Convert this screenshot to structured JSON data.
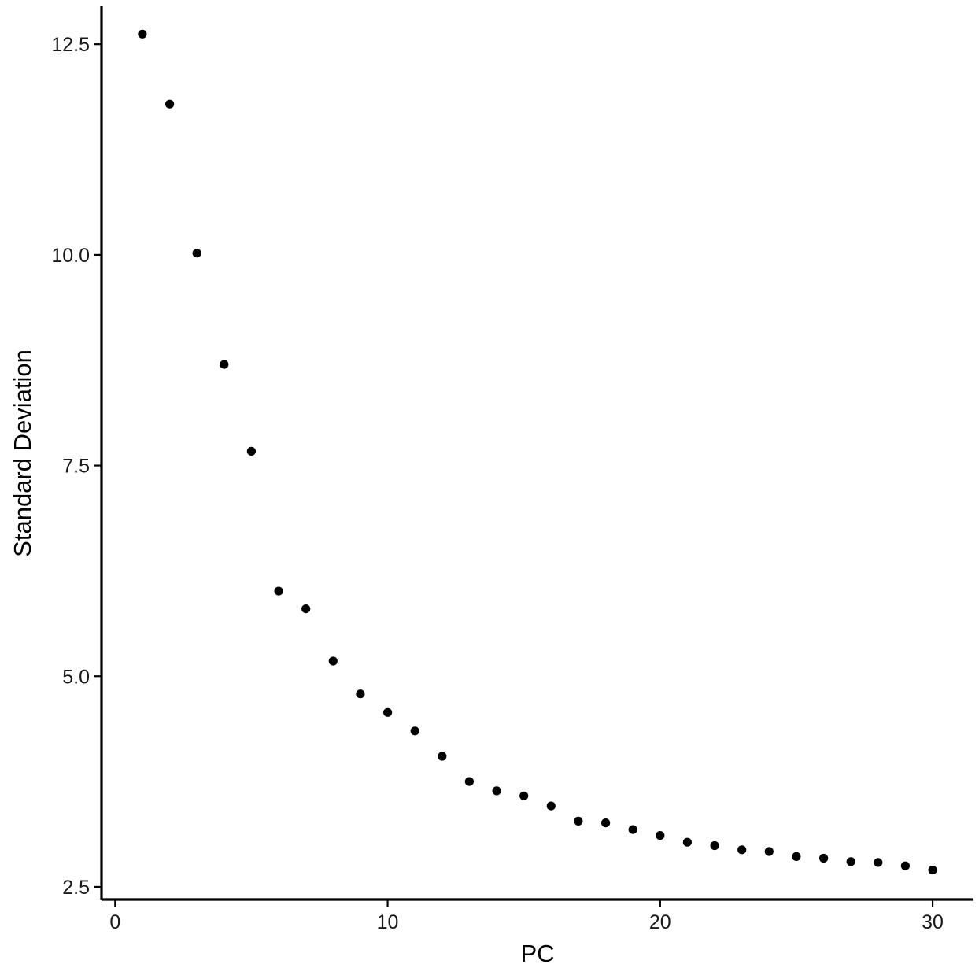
{
  "chart_data": {
    "type": "scatter",
    "title": "",
    "xlabel": "PC",
    "ylabel": "Standard Deviation",
    "xlim": [
      -0.5,
      31.5
    ],
    "ylim": [
      2.35,
      12.95
    ],
    "x_ticks": [
      0,
      10,
      20,
      30
    ],
    "x_tick_labels": [
      "0",
      "10",
      "20",
      "30"
    ],
    "y_ticks": [
      2.5,
      5.0,
      7.5,
      10.0,
      12.5
    ],
    "y_tick_labels": [
      "2.5",
      "5.0",
      "7.5",
      "10.0",
      "12.5"
    ],
    "grid": false,
    "legend": "none",
    "point_color": "#000000",
    "axis_color": "#000000",
    "series": [
      {
        "x": [
          1,
          2,
          3,
          4,
          5,
          6,
          7,
          8,
          9,
          10,
          11,
          12,
          13,
          14,
          15,
          16,
          17,
          18,
          19,
          20,
          21,
          22,
          23,
          24,
          25,
          26,
          27,
          28,
          29,
          30
        ],
        "y": [
          12.62,
          11.79,
          10.02,
          8.7,
          7.67,
          6.01,
          5.8,
          5.18,
          4.79,
          4.57,
          4.35,
          4.05,
          3.75,
          3.64,
          3.58,
          3.46,
          3.28,
          3.26,
          3.18,
          3.11,
          3.03,
          2.99,
          2.94,
          2.92,
          2.86,
          2.84,
          2.8,
          2.79,
          2.75,
          2.7
        ]
      }
    ]
  }
}
